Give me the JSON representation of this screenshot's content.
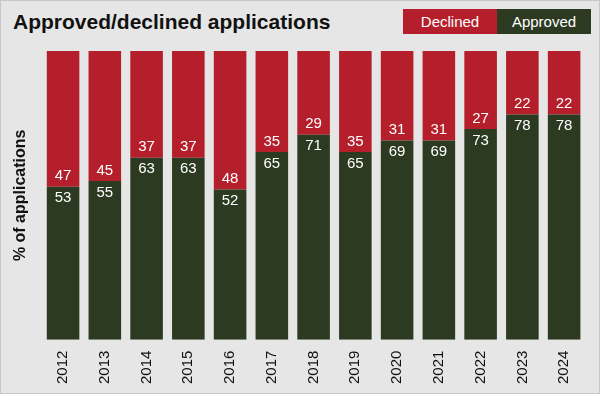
{
  "chart_data": {
    "type": "bar",
    "title": "Approved/declined applications",
    "y_label": "% of applications",
    "categories": [
      "2012",
      "2013",
      "2014",
      "2015",
      "2016",
      "2017",
      "2018",
      "2019",
      "2020",
      "2021",
      "2022",
      "2023",
      "2024"
    ],
    "series": [
      {
        "name": "Approved",
        "color": "#2c3a22",
        "values": [
          53,
          55,
          63,
          63,
          52,
          65,
          71,
          65,
          69,
          69,
          73,
          78,
          78
        ]
      },
      {
        "name": "Declined",
        "color": "#b41f2b",
        "values": [
          47,
          45,
          37,
          37,
          48,
          35,
          29,
          35,
          31,
          31,
          27,
          22,
          22
        ]
      }
    ],
    "ylim": [
      0,
      100
    ],
    "stacked": true,
    "data_labels": true,
    "grid": false,
    "legend": "top-right",
    "tick_labels": "x"
  }
}
